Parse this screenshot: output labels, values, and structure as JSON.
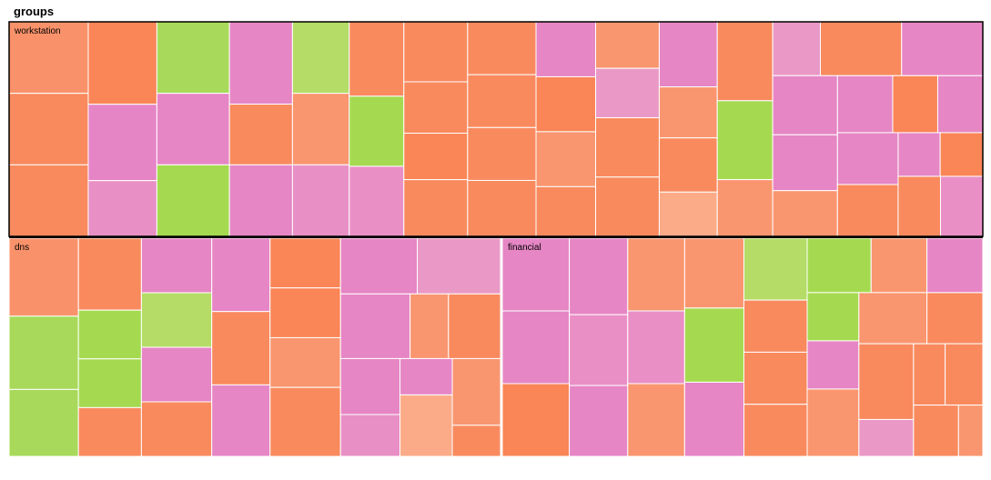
{
  "chart_data": {
    "type": "treemap",
    "title": "groups",
    "groups": [
      {
        "name": "workstation",
        "cells": [
          {
            "value": 216,
            "color": "#f9926a"
          },
          {
            "value": 216,
            "color": "#f98a5e"
          },
          {
            "value": 216,
            "color": "#f98a5e"
          },
          {
            "value": 216,
            "color": "#fa8556"
          },
          {
            "value": 200,
            "color": "#e585c6"
          },
          {
            "value": 146,
            "color": "#e890c5"
          },
          {
            "value": 198,
            "color": "#a8d95a"
          },
          {
            "value": 198,
            "color": "#e686c5"
          },
          {
            "value": 198,
            "color": "#a5da50"
          },
          {
            "value": 198,
            "color": "#e686c5"
          },
          {
            "value": 146,
            "color": "#f98a5e"
          },
          {
            "value": 172,
            "color": "#e686c5"
          },
          {
            "value": 155,
            "color": "#b4dc66"
          },
          {
            "value": 155,
            "color": "#f9966f"
          },
          {
            "value": 155,
            "color": "#e890c5"
          },
          {
            "value": 155,
            "color": "#f98a5e"
          },
          {
            "value": 146,
            "color": "#a5da50"
          },
          {
            "value": 146,
            "color": "#ea8fc6"
          },
          {
            "value": 146,
            "color": "#f98a5e"
          },
          {
            "value": 125,
            "color": "#f98a5e"
          },
          {
            "value": 113,
            "color": "#fa8556"
          },
          {
            "value": 138,
            "color": "#f98a5e"
          },
          {
            "value": 138,
            "color": "#f98a5e"
          },
          {
            "value": 138,
            "color": "#f98a5e"
          },
          {
            "value": 138,
            "color": "#f98a5e"
          },
          {
            "value": 146,
            "color": "#f98a5e"
          },
          {
            "value": 125,
            "color": "#e686c5"
          },
          {
            "value": 125,
            "color": "#fa8556"
          },
          {
            "value": 125,
            "color": "#f9966f"
          },
          {
            "value": 113,
            "color": "#f98a5e"
          },
          {
            "value": 113,
            "color": "#f9966f"
          },
          {
            "value": 120,
            "color": "#ea99c6"
          },
          {
            "value": 144,
            "color": "#f98a5e"
          },
          {
            "value": 144,
            "color": "#f98a5e"
          },
          {
            "value": 144,
            "color": "#e686c5"
          },
          {
            "value": 113,
            "color": "#f9966f"
          },
          {
            "value": 120,
            "color": "#f98a5e"
          },
          {
            "value": 98,
            "color": "#fbab88"
          },
          {
            "value": 167,
            "color": "#f98a5e"
          },
          {
            "value": 167,
            "color": "#a5da50"
          },
          {
            "value": 120,
            "color": "#f9966f"
          },
          {
            "value": 98,
            "color": "#ea99c6"
          },
          {
            "value": 167,
            "color": "#f98a5e"
          },
          {
            "value": 167,
            "color": "#e686c5"
          },
          {
            "value": 146,
            "color": "#e686c5"
          },
          {
            "value": 138,
            "color": "#e686c5"
          },
          {
            "value": 113,
            "color": "#f9966f"
          },
          {
            "value": 120,
            "color": "#e686c5"
          },
          {
            "value": 98,
            "color": "#fa8556"
          },
          {
            "value": 98,
            "color": "#e686c5"
          },
          {
            "value": 120,
            "color": "#e686c5"
          },
          {
            "value": 120,
            "color": "#f98a5e"
          },
          {
            "value": 70,
            "color": "#e686c5"
          },
          {
            "value": 71,
            "color": "#fa8556"
          },
          {
            "value": 97,
            "color": "#f98a5e"
          },
          {
            "value": 97,
            "color": "#ea8fc6"
          }
        ]
      },
      {
        "name": "dns",
        "cells": [
          {
            "value": 148,
            "color": "#f9926a"
          },
          {
            "value": 139,
            "color": "#a8d95a"
          },
          {
            "value": 127,
            "color": "#a8d95a"
          },
          {
            "value": 124,
            "color": "#f98a5e"
          },
          {
            "value": 84,
            "color": "#a5da50"
          },
          {
            "value": 84,
            "color": "#a5da50"
          },
          {
            "value": 84,
            "color": "#f98a5e"
          },
          {
            "value": 105,
            "color": "#e686c5"
          },
          {
            "value": 105,
            "color": "#b4dc66"
          },
          {
            "value": 105,
            "color": "#e686c5"
          },
          {
            "value": 105,
            "color": "#f98a5e"
          },
          {
            "value": 117,
            "color": "#e686c5"
          },
          {
            "value": 117,
            "color": "#f98a5e"
          },
          {
            "value": 114,
            "color": "#e686c5"
          },
          {
            "value": 96,
            "color": "#fa8556"
          },
          {
            "value": 96,
            "color": "#fa8556"
          },
          {
            "value": 96,
            "color": "#f9966f"
          },
          {
            "value": 133,
            "color": "#f98a5e"
          },
          {
            "value": 117,
            "color": "#e686c5"
          },
          {
            "value": 127,
            "color": "#ea99c6"
          },
          {
            "value": 123,
            "color": "#e686c5"
          },
          {
            "value": 68,
            "color": "#f9966f"
          },
          {
            "value": 92,
            "color": "#f98a5e"
          },
          {
            "value": 91,
            "color": "#e686c5"
          },
          {
            "value": 68,
            "color": "#e890c5"
          },
          {
            "value": 52,
            "color": "#e686c5"
          },
          {
            "value": 88,
            "color": "#fbab88"
          },
          {
            "value": 88,
            "color": "#f9966f"
          },
          {
            "value": 41,
            "color": "#f98a5e"
          }
        ]
      },
      {
        "name": "financial",
        "cells": [
          {
            "value": 133,
            "color": "#e686c5"
          },
          {
            "value": 133,
            "color": "#e686c5"
          },
          {
            "value": 133,
            "color": "#fa8556"
          },
          {
            "value": 122,
            "color": "#e686c5"
          },
          {
            "value": 113,
            "color": "#ea8fc6"
          },
          {
            "value": 113,
            "color": "#e686c5"
          },
          {
            "value": 113,
            "color": "#f9966f"
          },
          {
            "value": 113,
            "color": "#ea8fc6"
          },
          {
            "value": 113,
            "color": "#f9966f"
          },
          {
            "value": 113,
            "color": "#f9966f"
          },
          {
            "value": 120,
            "color": "#a5da50"
          },
          {
            "value": 120,
            "color": "#e686c5"
          },
          {
            "value": 107,
            "color": "#b4dc66"
          },
          {
            "value": 90,
            "color": "#f98a5e"
          },
          {
            "value": 90,
            "color": "#f98a5e"
          },
          {
            "value": 90,
            "color": "#f98a5e"
          },
          {
            "value": 95,
            "color": "#a5da50"
          },
          {
            "value": 83,
            "color": "#f9966f"
          },
          {
            "value": 83,
            "color": "#e686c5"
          },
          {
            "value": 68,
            "color": "#a5da50"
          },
          {
            "value": 68,
            "color": "#e686c5"
          },
          {
            "value": 95,
            "color": "#f9966f"
          },
          {
            "value": 95,
            "color": "#f9966f"
          },
          {
            "value": 78,
            "color": "#f98a5e"
          },
          {
            "value": 113,
            "color": "#f98a5e"
          },
          {
            "value": 55,
            "color": "#ea99c6"
          },
          {
            "value": 53,
            "color": "#f98a5e"
          },
          {
            "value": 63,
            "color": "#f98a5e"
          },
          {
            "value": 63,
            "color": "#f98a5e"
          },
          {
            "value": 34,
            "color": "#f9966f"
          }
        ]
      }
    ]
  }
}
